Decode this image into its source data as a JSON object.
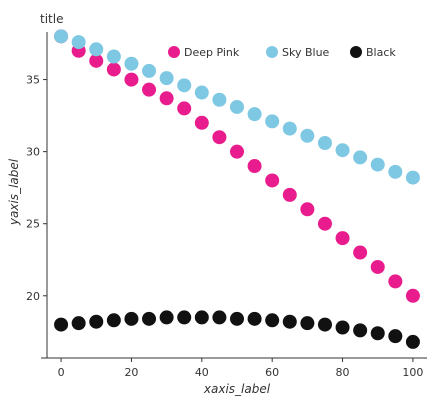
{
  "chart_data": {
    "type": "scatter",
    "title": "title",
    "xlabel": "xaxis_label",
    "ylabel": "yaxis_label",
    "xlim": [
      -4,
      104
    ],
    "ylim": [
      16.1,
      38.3
    ],
    "xticks": [
      0,
      20,
      40,
      60,
      80,
      100
    ],
    "yticks": [
      20,
      25,
      30,
      35
    ],
    "grid": false,
    "legend_position": "top-right",
    "series": [
      {
        "name": "Deep Pink",
        "color": "#e81c8c",
        "x": [
          0,
          5,
          10,
          15,
          20,
          25,
          30,
          35,
          40,
          45,
          50,
          55,
          60,
          65,
          70,
          75,
          80,
          85,
          90,
          95,
          100
        ],
        "y": [
          38.0,
          37.0,
          36.3,
          35.7,
          35.0,
          34.3,
          33.7,
          33.0,
          32.0,
          31.0,
          30.0,
          29.0,
          28.0,
          27.0,
          26.0,
          25.0,
          24.0,
          23.0,
          22.0,
          21.0,
          20.0
        ]
      },
      {
        "name": "Sky Blue",
        "color": "#7ec8e3",
        "x": [
          0,
          5,
          10,
          15,
          20,
          25,
          30,
          35,
          40,
          45,
          50,
          55,
          60,
          65,
          70,
          75,
          80,
          85,
          90,
          95,
          100
        ],
        "y": [
          38.0,
          37.6,
          37.1,
          36.6,
          36.1,
          35.6,
          35.1,
          34.6,
          34.1,
          33.6,
          33.1,
          32.6,
          32.1,
          31.6,
          31.1,
          30.6,
          30.1,
          29.6,
          29.1,
          28.6,
          28.2
        ]
      },
      {
        "name": "Black",
        "color": "#111111",
        "x": [
          0,
          5,
          10,
          15,
          20,
          25,
          30,
          35,
          40,
          45,
          50,
          55,
          60,
          65,
          70,
          75,
          80,
          85,
          90,
          95,
          100
        ],
        "y": [
          18.0,
          18.1,
          18.2,
          18.3,
          18.4,
          18.4,
          18.5,
          18.5,
          18.5,
          18.5,
          18.4,
          18.4,
          18.3,
          18.2,
          18.1,
          18.0,
          17.8,
          17.6,
          17.4,
          17.2,
          16.8
        ]
      }
    ]
  }
}
